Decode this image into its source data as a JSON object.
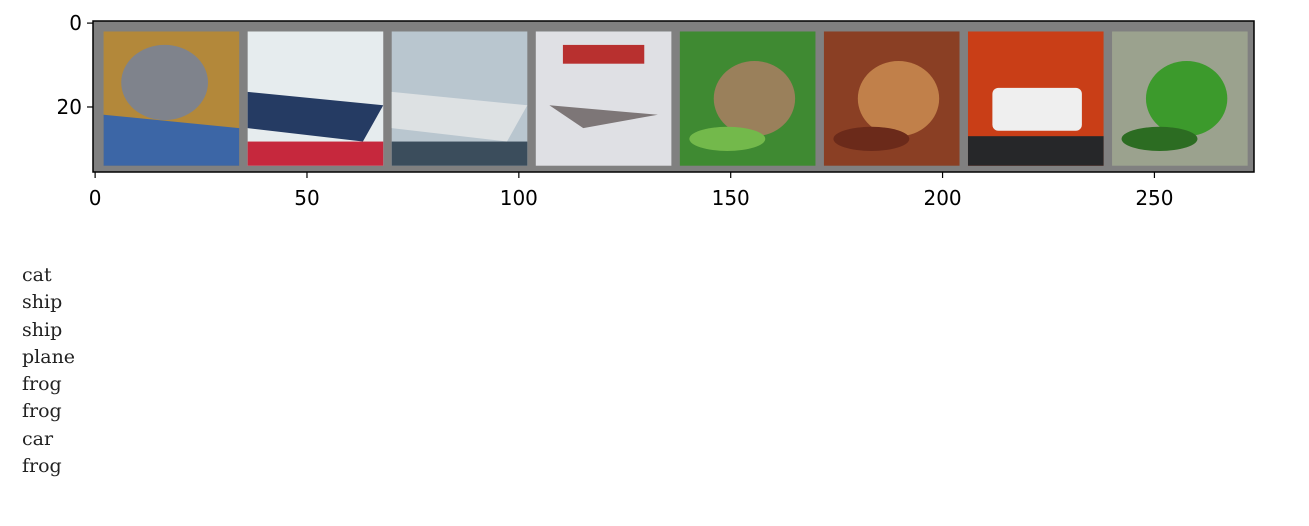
{
  "figure": {
    "frame_color": "#808080",
    "image_grid": {
      "cells": [
        {
          "subject": "cat",
          "background": "#b3883a",
          "accent": "#7f838c",
          "detail": "#3c66a6"
        },
        {
          "subject": "ship",
          "background": "#e6ecee",
          "accent": "#253b63",
          "detail": "#c6283d"
        },
        {
          "subject": "ship",
          "background": "#b9c6cf",
          "accent": "#dde1e3",
          "detail": "#3b4d5c"
        },
        {
          "subject": "plane",
          "background": "#dfe0e4",
          "accent": "#7d7677",
          "detail": "#b8302f"
        },
        {
          "subject": "frog",
          "background": "#3f8a32",
          "accent": "#9a805b",
          "detail": "#73b94b"
        },
        {
          "subject": "frog",
          "background": "#8a3f24",
          "accent": "#c1804a",
          "detail": "#6b2a1a"
        },
        {
          "subject": "car",
          "background": "#c93e17",
          "accent": "#efefef",
          "detail": "#262729"
        },
        {
          "subject": "frog",
          "background": "#9ba28e",
          "accent": "#3c9a2c",
          "detail": "#2c6c22"
        }
      ]
    },
    "x_axis": {
      "range": [
        -0.5,
        273.5
      ],
      "tick_values": [
        0,
        50,
        100,
        150,
        200,
        250
      ],
      "tick_labels": [
        "0",
        "50",
        "100",
        "150",
        "200",
        "250"
      ]
    },
    "y_axis": {
      "range": [
        35.5,
        -0.5
      ],
      "tick_values": [
        0,
        20
      ],
      "tick_labels": [
        "0",
        "20"
      ]
    }
  },
  "output": {
    "lines": [
      "cat",
      "ship",
      "ship",
      "plane",
      "frog",
      "frog",
      "car",
      "frog"
    ]
  }
}
